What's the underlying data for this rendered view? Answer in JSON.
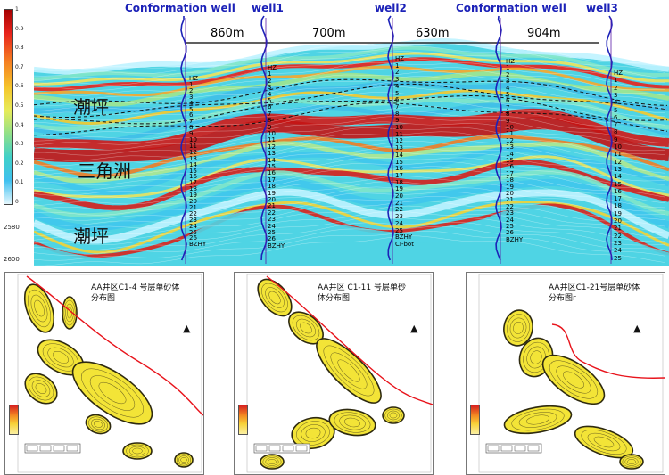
{
  "section": {
    "colorbar_ticks": [
      "1",
      "0.9",
      "0.8",
      "0.7",
      "0.6",
      "0.5",
      "0.4",
      "0.3",
      "0.2",
      "0.1",
      "0"
    ],
    "depth_ticks": [
      "2580",
      "2600"
    ],
    "wells": [
      {
        "title": "Conformation well"
      },
      {
        "title": "well1"
      },
      {
        "title": "well2"
      },
      {
        "title": "Conformation well"
      },
      {
        "title": "well3"
      }
    ],
    "distances": [
      "860m",
      "700m",
      "630m",
      "904m"
    ],
    "facies": [
      "潮坪",
      "三角洲",
      "潮坪"
    ],
    "well_layers": {
      "w1": [
        "HZ",
        "1",
        "2",
        "3",
        "4",
        "5",
        "6",
        "7",
        "8",
        "9",
        "10",
        "11",
        "12",
        "13",
        "14",
        "15",
        "16",
        "17",
        "18",
        "19",
        "20",
        "21",
        "22",
        "23",
        "24",
        "25",
        "26",
        "BZHY"
      ],
      "w2": [
        "HZ",
        "1",
        "2",
        "3",
        "4",
        "5",
        "6",
        "7",
        "8",
        "9",
        "10",
        "11",
        "12",
        "13",
        "14",
        "15",
        "16",
        "17",
        "18",
        "19",
        "20",
        "21",
        "22",
        "23",
        "24",
        "25",
        "26",
        "BZHY"
      ],
      "w3": [
        "HZ",
        "1",
        "2",
        "3",
        "4",
        "5",
        "6",
        "7",
        "8",
        "9",
        "10",
        "11",
        "12",
        "13",
        "14",
        "15",
        "16",
        "17",
        "18",
        "19",
        "20",
        "21",
        "22",
        "23",
        "24",
        "25",
        "BZHY",
        "CI-bot"
      ],
      "w4": [
        "HZ",
        "1",
        "2",
        "3",
        "4",
        "5",
        "6",
        "7",
        "8",
        "9",
        "10",
        "11",
        "12",
        "13",
        "14",
        "15",
        "16",
        "17",
        "18",
        "19",
        "20",
        "21",
        "22",
        "23",
        "24",
        "25",
        "26",
        "BZHY"
      ],
      "w5": [
        "HZ",
        "1",
        "2",
        "3",
        "4",
        "5",
        "6",
        "7",
        "8",
        "9",
        "10",
        "11",
        "12",
        "13",
        "14",
        "15",
        "16",
        "17",
        "18",
        "19",
        "20",
        "21",
        "22",
        "23",
        "24",
        "25"
      ]
    }
  },
  "maps": [
    {
      "title_line1": "AA井区C1-4 号层单砂体",
      "title_line2": "分布图"
    },
    {
      "title_line1": "AA井区 C1-11 号层单砂",
      "title_line2": "体分布图"
    },
    {
      "title_line1": "AA井区C1-21号层单砂体",
      "title_line2": "分布图r"
    }
  ],
  "colors": {
    "well_title": "#1c22b8",
    "fault": "#e8141c",
    "sand_fill": "#f3e437",
    "sand_contour": "#2e2a10"
  }
}
